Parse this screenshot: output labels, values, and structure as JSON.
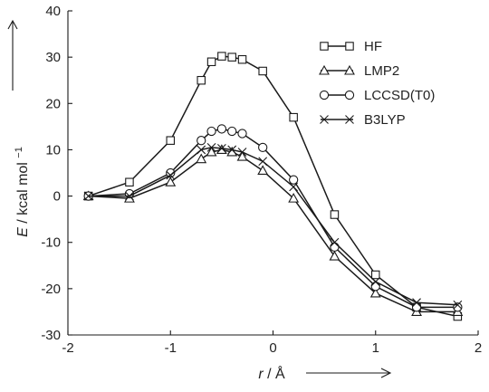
{
  "chart_data": {
    "type": "line",
    "xlabel_var": "r",
    "xlabel_unit": "Å",
    "ylabel_var": "E",
    "ylabel_unit": "kcal mol",
    "ylabel_exp": "−1",
    "xlim": [
      -2,
      2
    ],
    "ylim": [
      -30,
      40
    ],
    "xticks": [
      -2,
      -1,
      0,
      1,
      2
    ],
    "yticks": [
      40,
      30,
      20,
      10,
      0,
      -10,
      -20,
      -30
    ],
    "legend_position": "top-right",
    "grid": false,
    "series": [
      {
        "name": "HF",
        "marker": "square",
        "x": [
          -1.8,
          -1.4,
          -1.0,
          -0.7,
          -0.6,
          -0.5,
          -0.4,
          -0.3,
          -0.1,
          0.2,
          0.6,
          1.0,
          1.4,
          1.8
        ],
        "y": [
          0,
          3,
          12,
          25,
          29,
          30.2,
          30,
          29.5,
          27,
          17,
          -4,
          -17,
          -24,
          -26
        ]
      },
      {
        "name": "LMP2",
        "marker": "triangle",
        "x": [
          -1.8,
          -1.4,
          -1.0,
          -0.7,
          -0.6,
          -0.5,
          -0.4,
          -0.3,
          -0.1,
          0.2,
          0.6,
          1.0,
          1.4,
          1.8
        ],
        "y": [
          0,
          -0.5,
          3,
          8,
          9.5,
          10,
          9.5,
          8.5,
          5.5,
          -0.5,
          -13,
          -21,
          -25,
          -25
        ]
      },
      {
        "name": "LCCSD(T0)",
        "marker": "circle",
        "x": [
          -1.8,
          -1.4,
          -1.0,
          -0.7,
          -0.6,
          -0.5,
          -0.4,
          -0.3,
          -0.1,
          0.2,
          0.6,
          1.0,
          1.4,
          1.8
        ],
        "y": [
          0,
          0.5,
          5,
          12,
          14,
          14.5,
          14,
          13.5,
          10.5,
          3.5,
          -11,
          -19.5,
          -24,
          -24
        ]
      },
      {
        "name": "B3LYP",
        "marker": "cross",
        "x": [
          -1.8,
          -1.4,
          -1.0,
          -0.7,
          -0.6,
          -0.5,
          -0.4,
          -0.3,
          -0.1,
          0.2,
          0.6,
          1.0,
          1.4,
          1.8
        ],
        "y": [
          0,
          0,
          4.5,
          10,
          10.5,
          10.3,
          10,
          9.5,
          7.5,
          2,
          -10,
          -18.5,
          -23,
          -23.5
        ]
      }
    ]
  }
}
